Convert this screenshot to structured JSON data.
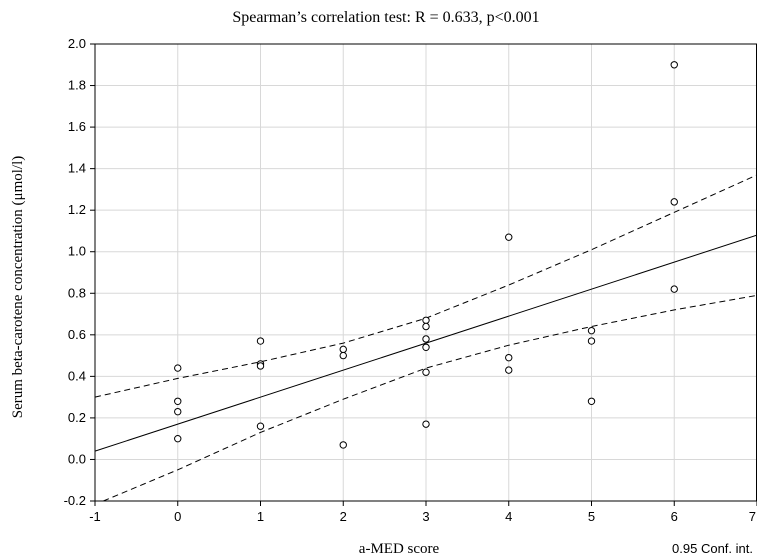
{
  "chart_data": {
    "type": "scatter",
    "title": "Spearman’s correlation test: R = 0.633, p<0.001",
    "xlabel": "a-MED score",
    "ylabel": "Serum beta-carotene concentration (μmol/l)",
    "xlim": [
      -1,
      7
    ],
    "ylim": [
      -0.2,
      2.0
    ],
    "x_ticks": [
      -1,
      0,
      1,
      2,
      3,
      4,
      5,
      6,
      7
    ],
    "x_tick_labels": [
      "-1",
      "0",
      "1",
      "2",
      "3",
      "4",
      "5",
      "6",
      "7"
    ],
    "y_ticks": [
      -0.2,
      0.0,
      0.2,
      0.4,
      0.6,
      0.8,
      1.0,
      1.2,
      1.4,
      1.6,
      1.8,
      2.0
    ],
    "y_tick_labels": [
      "-0.2",
      "0.0",
      "0.2",
      "0.4",
      "0.6",
      "0.8",
      "1.0",
      "1.2",
      "1.4",
      "1.6",
      "1.8",
      "2.0"
    ],
    "grid": true,
    "points": [
      {
        "x": 0,
        "y": 0.44
      },
      {
        "x": 0,
        "y": 0.28
      },
      {
        "x": 0,
        "y": 0.23
      },
      {
        "x": 0,
        "y": 0.1
      },
      {
        "x": 1,
        "y": 0.57
      },
      {
        "x": 1,
        "y": 0.46
      },
      {
        "x": 1,
        "y": 0.45
      },
      {
        "x": 1,
        "y": 0.16
      },
      {
        "x": 2,
        "y": 0.53
      },
      {
        "x": 2,
        "y": 0.5
      },
      {
        "x": 2,
        "y": 0.07
      },
      {
        "x": 3,
        "y": 0.67
      },
      {
        "x": 3,
        "y": 0.64
      },
      {
        "x": 3,
        "y": 0.58
      },
      {
        "x": 3,
        "y": 0.54
      },
      {
        "x": 3,
        "y": 0.42
      },
      {
        "x": 3,
        "y": 0.17
      },
      {
        "x": 4,
        "y": 1.07
      },
      {
        "x": 4,
        "y": 0.49
      },
      {
        "x": 4,
        "y": 0.43
      },
      {
        "x": 5,
        "y": 0.62
      },
      {
        "x": 5,
        "y": 0.57
      },
      {
        "x": 5,
        "y": 0.28
      },
      {
        "x": 6,
        "y": 1.9
      },
      {
        "x": 6,
        "y": 1.24
      },
      {
        "x": 6,
        "y": 0.82
      }
    ],
    "regression_line": {
      "x": [
        -1,
        7
      ],
      "y": [
        0.04,
        1.08
      ]
    },
    "confidence_band": {
      "label": "0.95 Conf. int.",
      "upper": {
        "x": [
          -1,
          0,
          1,
          2,
          3,
          4,
          5,
          6,
          7
        ],
        "y": [
          0.3,
          0.39,
          0.47,
          0.56,
          0.68,
          0.84,
          1.01,
          1.19,
          1.37
        ]
      },
      "lower": {
        "x": [
          -0.9,
          0,
          1,
          2,
          3,
          4,
          5,
          6,
          7
        ],
        "y": [
          -0.2,
          -0.05,
          0.13,
          0.29,
          0.44,
          0.55,
          0.64,
          0.72,
          0.79
        ]
      }
    },
    "colors": {
      "background": "#ffffff",
      "axis": "#000000",
      "grid": "#d8d8d8",
      "point_stroke": "#000000",
      "fit_line": "#000000",
      "confidence_line": "#000000"
    }
  }
}
